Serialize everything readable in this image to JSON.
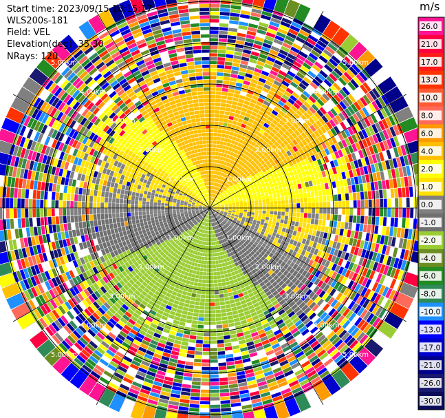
{
  "header": {
    "start_time": "Start time: 2023/09/15 18:15:17",
    "instrument": "WLS200s-181",
    "field": "Field: VEL",
    "elevation": "Elevation(deg): 35.30",
    "nrays": "NRays: 120"
  },
  "colorbar": {
    "unit": "m/s",
    "ticks": [
      "26.0",
      "21.0",
      "17.0",
      "13.0",
      "10.0",
      "8.0",
      "6.0",
      "4.0",
      "2.0",
      "1.0",
      "0.0",
      "-1.0",
      "-2.0",
      "-4.0",
      "-6.0",
      "-8.0",
      "-10.0",
      "-13.0",
      "-17.0",
      "-21.0",
      "-26.0",
      "-30.0"
    ],
    "colors": [
      "#ff1493",
      "#ff0040",
      "#ff1a1a",
      "#ff3300",
      "#ff5a33",
      "#ff6a5a",
      "#ff9a00",
      "#ffc000",
      "#ffff00",
      "#ffe000",
      "#808080",
      "#707070",
      "#9acd32",
      "#6b8e23",
      "#228b22",
      "#2e8b57",
      "#1e90ff",
      "#0000ff",
      "#0000cd",
      "#00008b",
      "#191970",
      "#0b0b5a"
    ]
  },
  "chart_data": {
    "type": "ppi",
    "nrays": 120,
    "range_rings_km": [
      1.0,
      2.0,
      3.0,
      4.0,
      5.0
    ],
    "range_labels": [
      "1.00km",
      "2.00km",
      "3.00km",
      "4.00km",
      "5.00km"
    ],
    "max_range_km": 5.5,
    "field": "VEL",
    "units": "m/s",
    "vmin": -30.0,
    "vmax": 26.0,
    "pattern": {
      "north_sector_velocity_ms": 2.5,
      "south_sector_velocity_ms": -2.5,
      "zero_line_azimuth_deg": 105,
      "clean_signal_radius_km": 3.0,
      "noise_beyond_km": 3.0
    }
  }
}
